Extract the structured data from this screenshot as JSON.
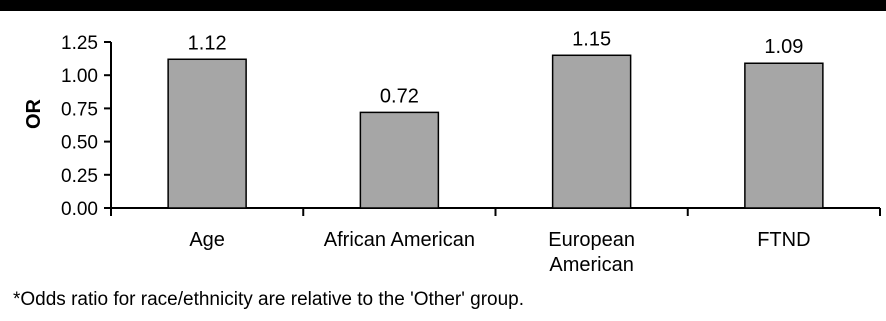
{
  "chart_data": {
    "type": "bar",
    "categories": [
      "Age",
      "African American",
      "European\nAmerican",
      "FTND"
    ],
    "values": [
      1.12,
      0.72,
      1.15,
      1.09
    ],
    "data_labels": [
      "1.12",
      "0.72",
      "1.15",
      "1.09"
    ],
    "ylabel": "OR",
    "xlabel": "",
    "title": "",
    "ylim": [
      0,
      1.25
    ],
    "yticks": [
      "0.00",
      "0.25",
      "0.50",
      "0.75",
      "1.00",
      "1.25"
    ],
    "grid": false,
    "legend": "none",
    "colors": {
      "bar_fill": "#a6a6a6",
      "bar_stroke": "#000000",
      "top_rule": "#000000"
    }
  },
  "footnote": "*Odds ratio for race/ethnicity are relative to the 'Other' group."
}
